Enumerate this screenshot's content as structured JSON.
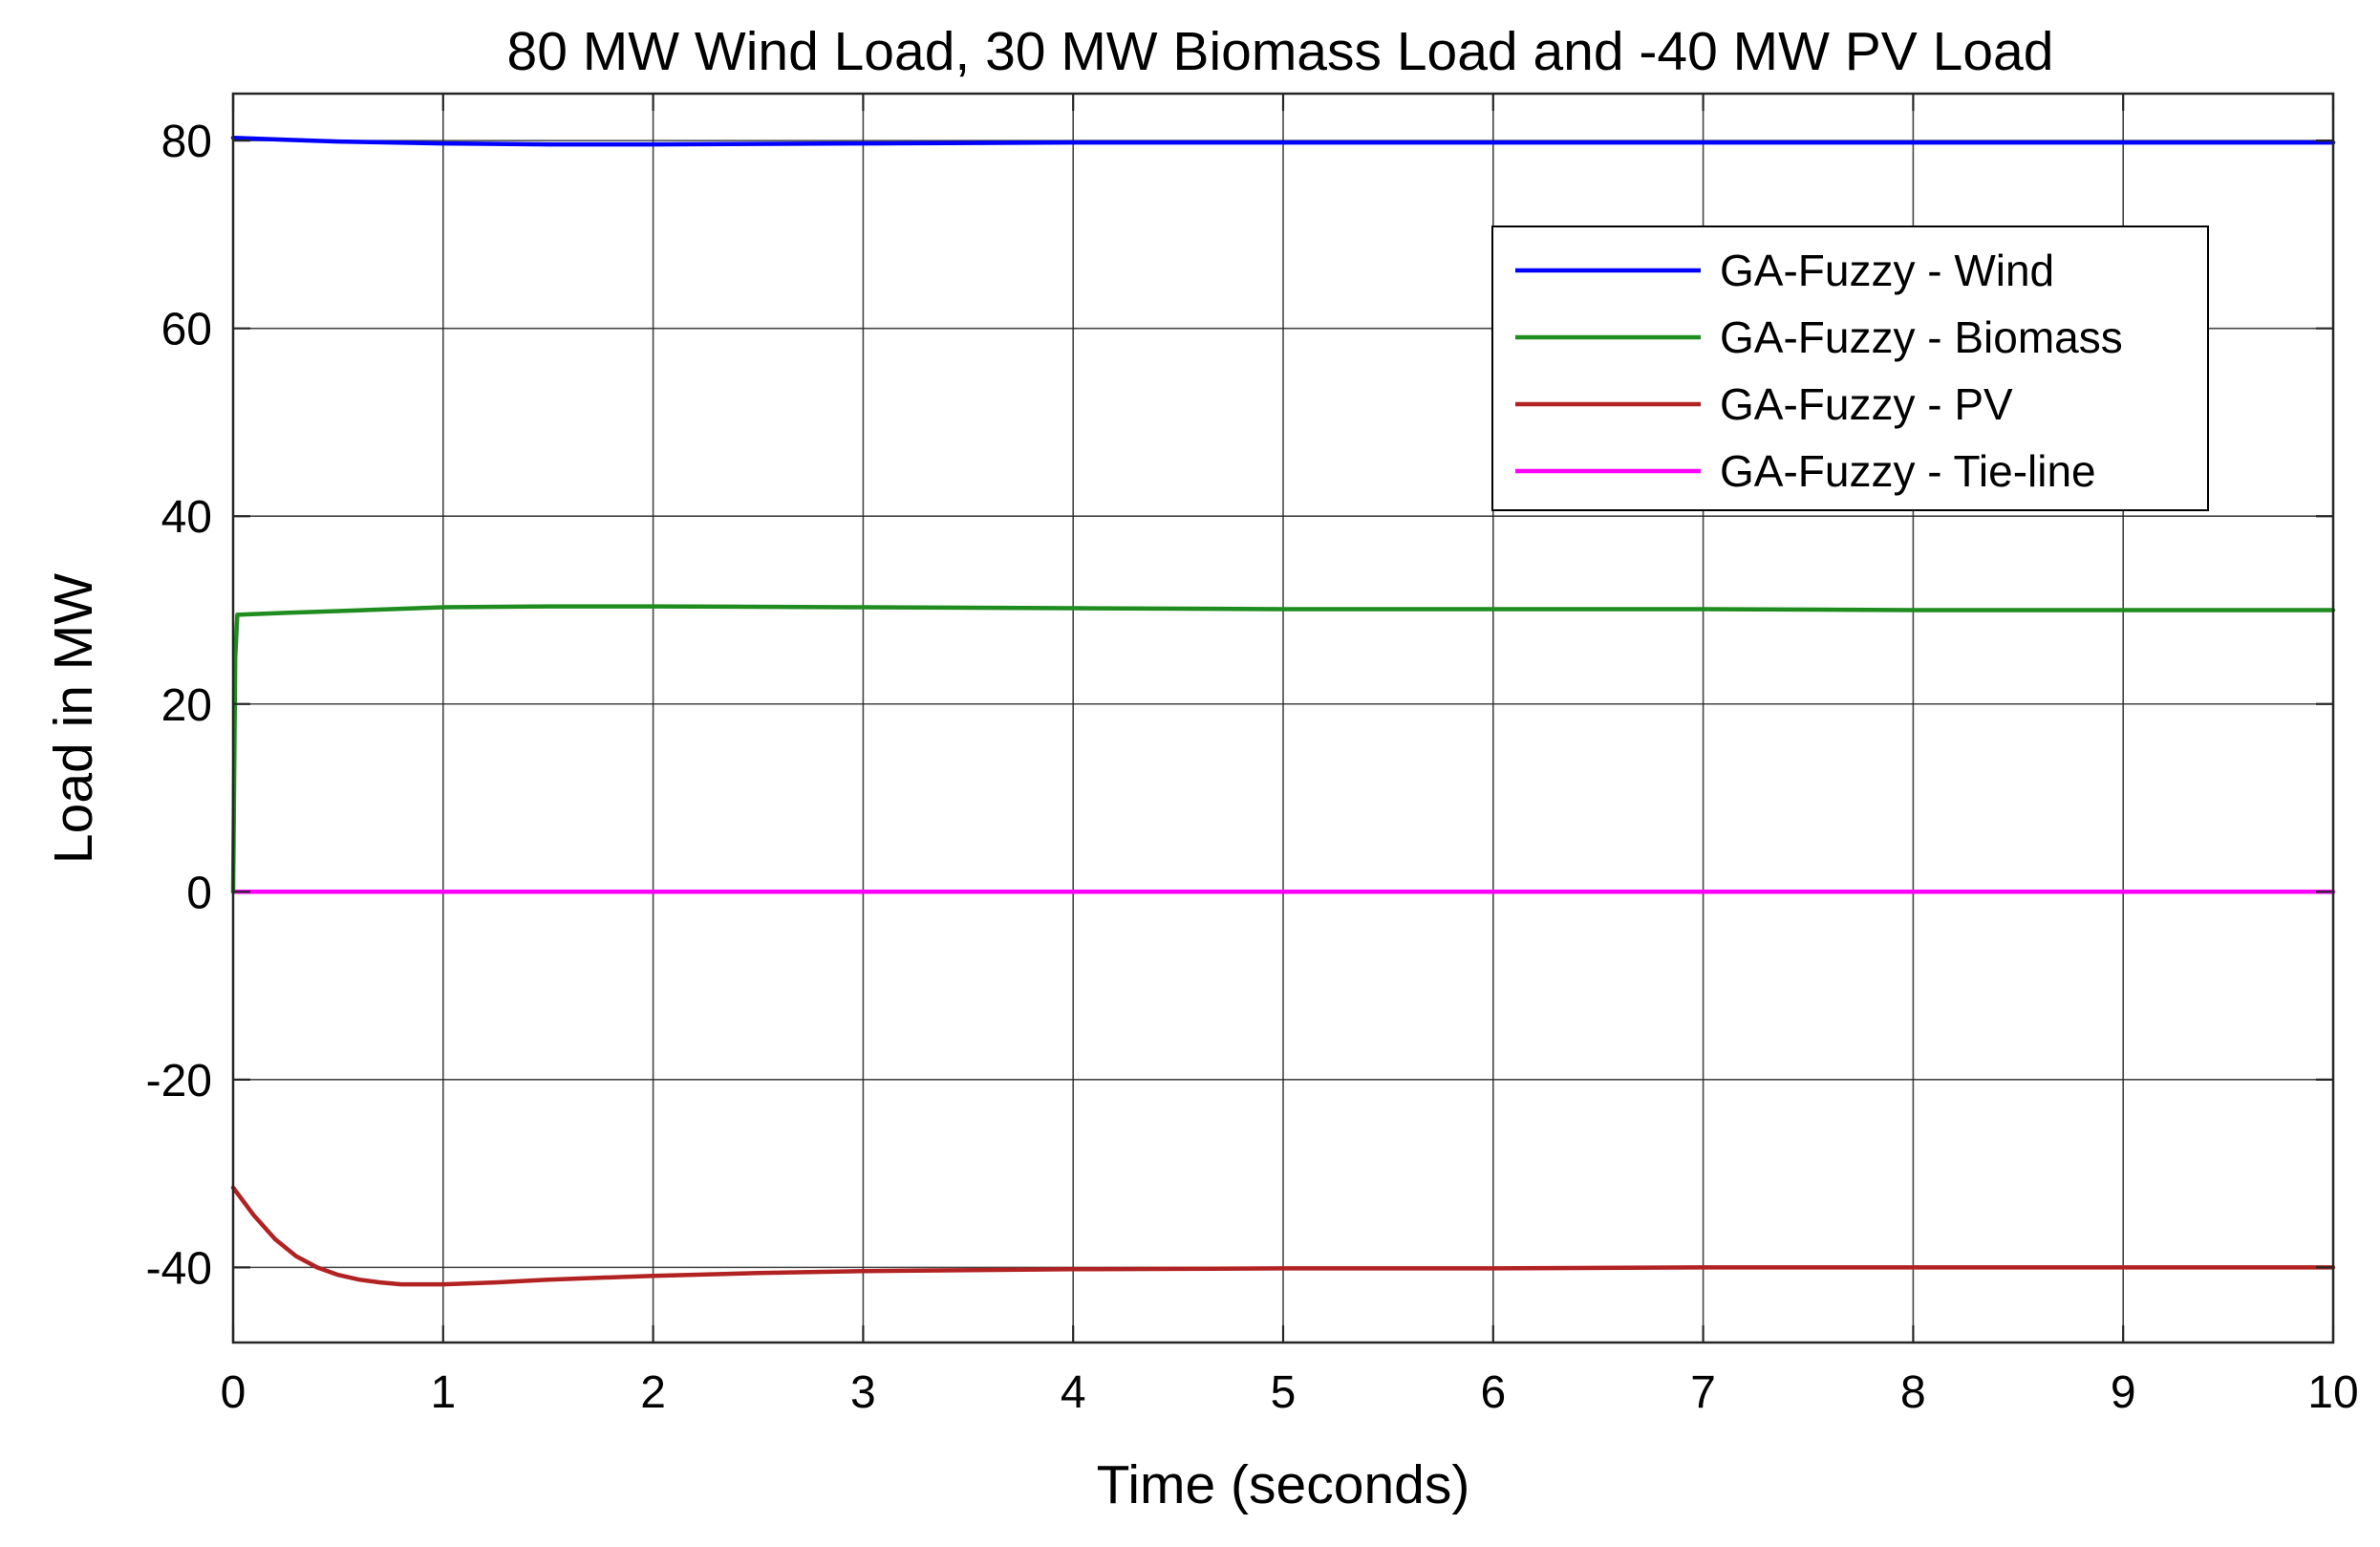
{
  "chart_data": {
    "type": "line",
    "title": "80 MW Wind Load, 30 MW Biomass Load and -40 MW PV Load",
    "xlabel": "Time (seconds)",
    "ylabel": "Load in MW",
    "xlim": [
      0,
      10
    ],
    "ylim": [
      -48,
      85
    ],
    "xticks": [
      0,
      1,
      2,
      3,
      4,
      5,
      6,
      7,
      8,
      9,
      10
    ],
    "yticks": [
      -40,
      -20,
      0,
      20,
      40,
      60,
      80
    ],
    "grid": true,
    "legend_position": "top-right",
    "series": [
      {
        "name": "GA-Fuzzy - Wind",
        "color": "#0000ff",
        "x": [
          0,
          0.25,
          0.5,
          0.75,
          1,
          1.5,
          2,
          3,
          4,
          5,
          6,
          7,
          8,
          9,
          10
        ],
        "y": [
          80.3,
          80.1,
          79.9,
          79.8,
          79.7,
          79.6,
          79.6,
          79.7,
          79.8,
          79.8,
          79.8,
          79.8,
          79.8,
          79.8,
          79.8
        ]
      },
      {
        "name": "GA-Fuzzy - Biomass",
        "color": "#1e8c1e",
        "x": [
          0,
          0.01,
          0.02,
          0.25,
          0.5,
          0.75,
          1,
          1.5,
          2,
          3,
          4,
          5,
          6,
          7,
          8,
          9,
          10
        ],
        "y": [
          0,
          25,
          29.5,
          29.7,
          29.9,
          30.1,
          30.3,
          30.4,
          30.4,
          30.3,
          30.2,
          30.1,
          30.1,
          30.1,
          30.0,
          30.0,
          30.0
        ]
      },
      {
        "name": "GA-Fuzzy - PV",
        "color": "#b22222",
        "x": [
          0,
          0.1,
          0.2,
          0.3,
          0.4,
          0.5,
          0.6,
          0.7,
          0.8,
          1.0,
          1.25,
          1.5,
          2,
          2.5,
          3,
          4,
          5,
          6,
          7,
          8,
          9,
          10
        ],
        "y": [
          -31.5,
          -34.5,
          -37.0,
          -38.8,
          -40.0,
          -40.8,
          -41.3,
          -41.6,
          -41.8,
          -41.8,
          -41.6,
          -41.3,
          -40.9,
          -40.6,
          -40.4,
          -40.2,
          -40.1,
          -40.1,
          -40.0,
          -40.0,
          -40.0,
          -40.0
        ]
      },
      {
        "name": "GA-Fuzzy - Tie-line",
        "color": "#ff00ff",
        "x": [
          0,
          10
        ],
        "y": [
          0,
          0
        ]
      }
    ]
  }
}
